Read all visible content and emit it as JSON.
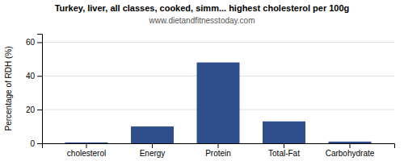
{
  "chart_data": {
    "type": "bar",
    "title": "Turkey, liver, all classes, cooked, simm... highest cholesterol per 100g",
    "subtitle": "www.dietandfitnesstoday.com",
    "categories": [
      "cholesterol",
      "Energy",
      "Protein",
      "Total-Fat",
      "Carbohydrate"
    ],
    "values": [
      0.5,
      10,
      48,
      13,
      1.0
    ],
    "color": "#2e4f8c",
    "ylabel": "Percentage of RDH (%)",
    "ylim": [
      0,
      65
    ],
    "yticks": [
      0,
      20,
      40,
      60
    ],
    "grid": true
  }
}
